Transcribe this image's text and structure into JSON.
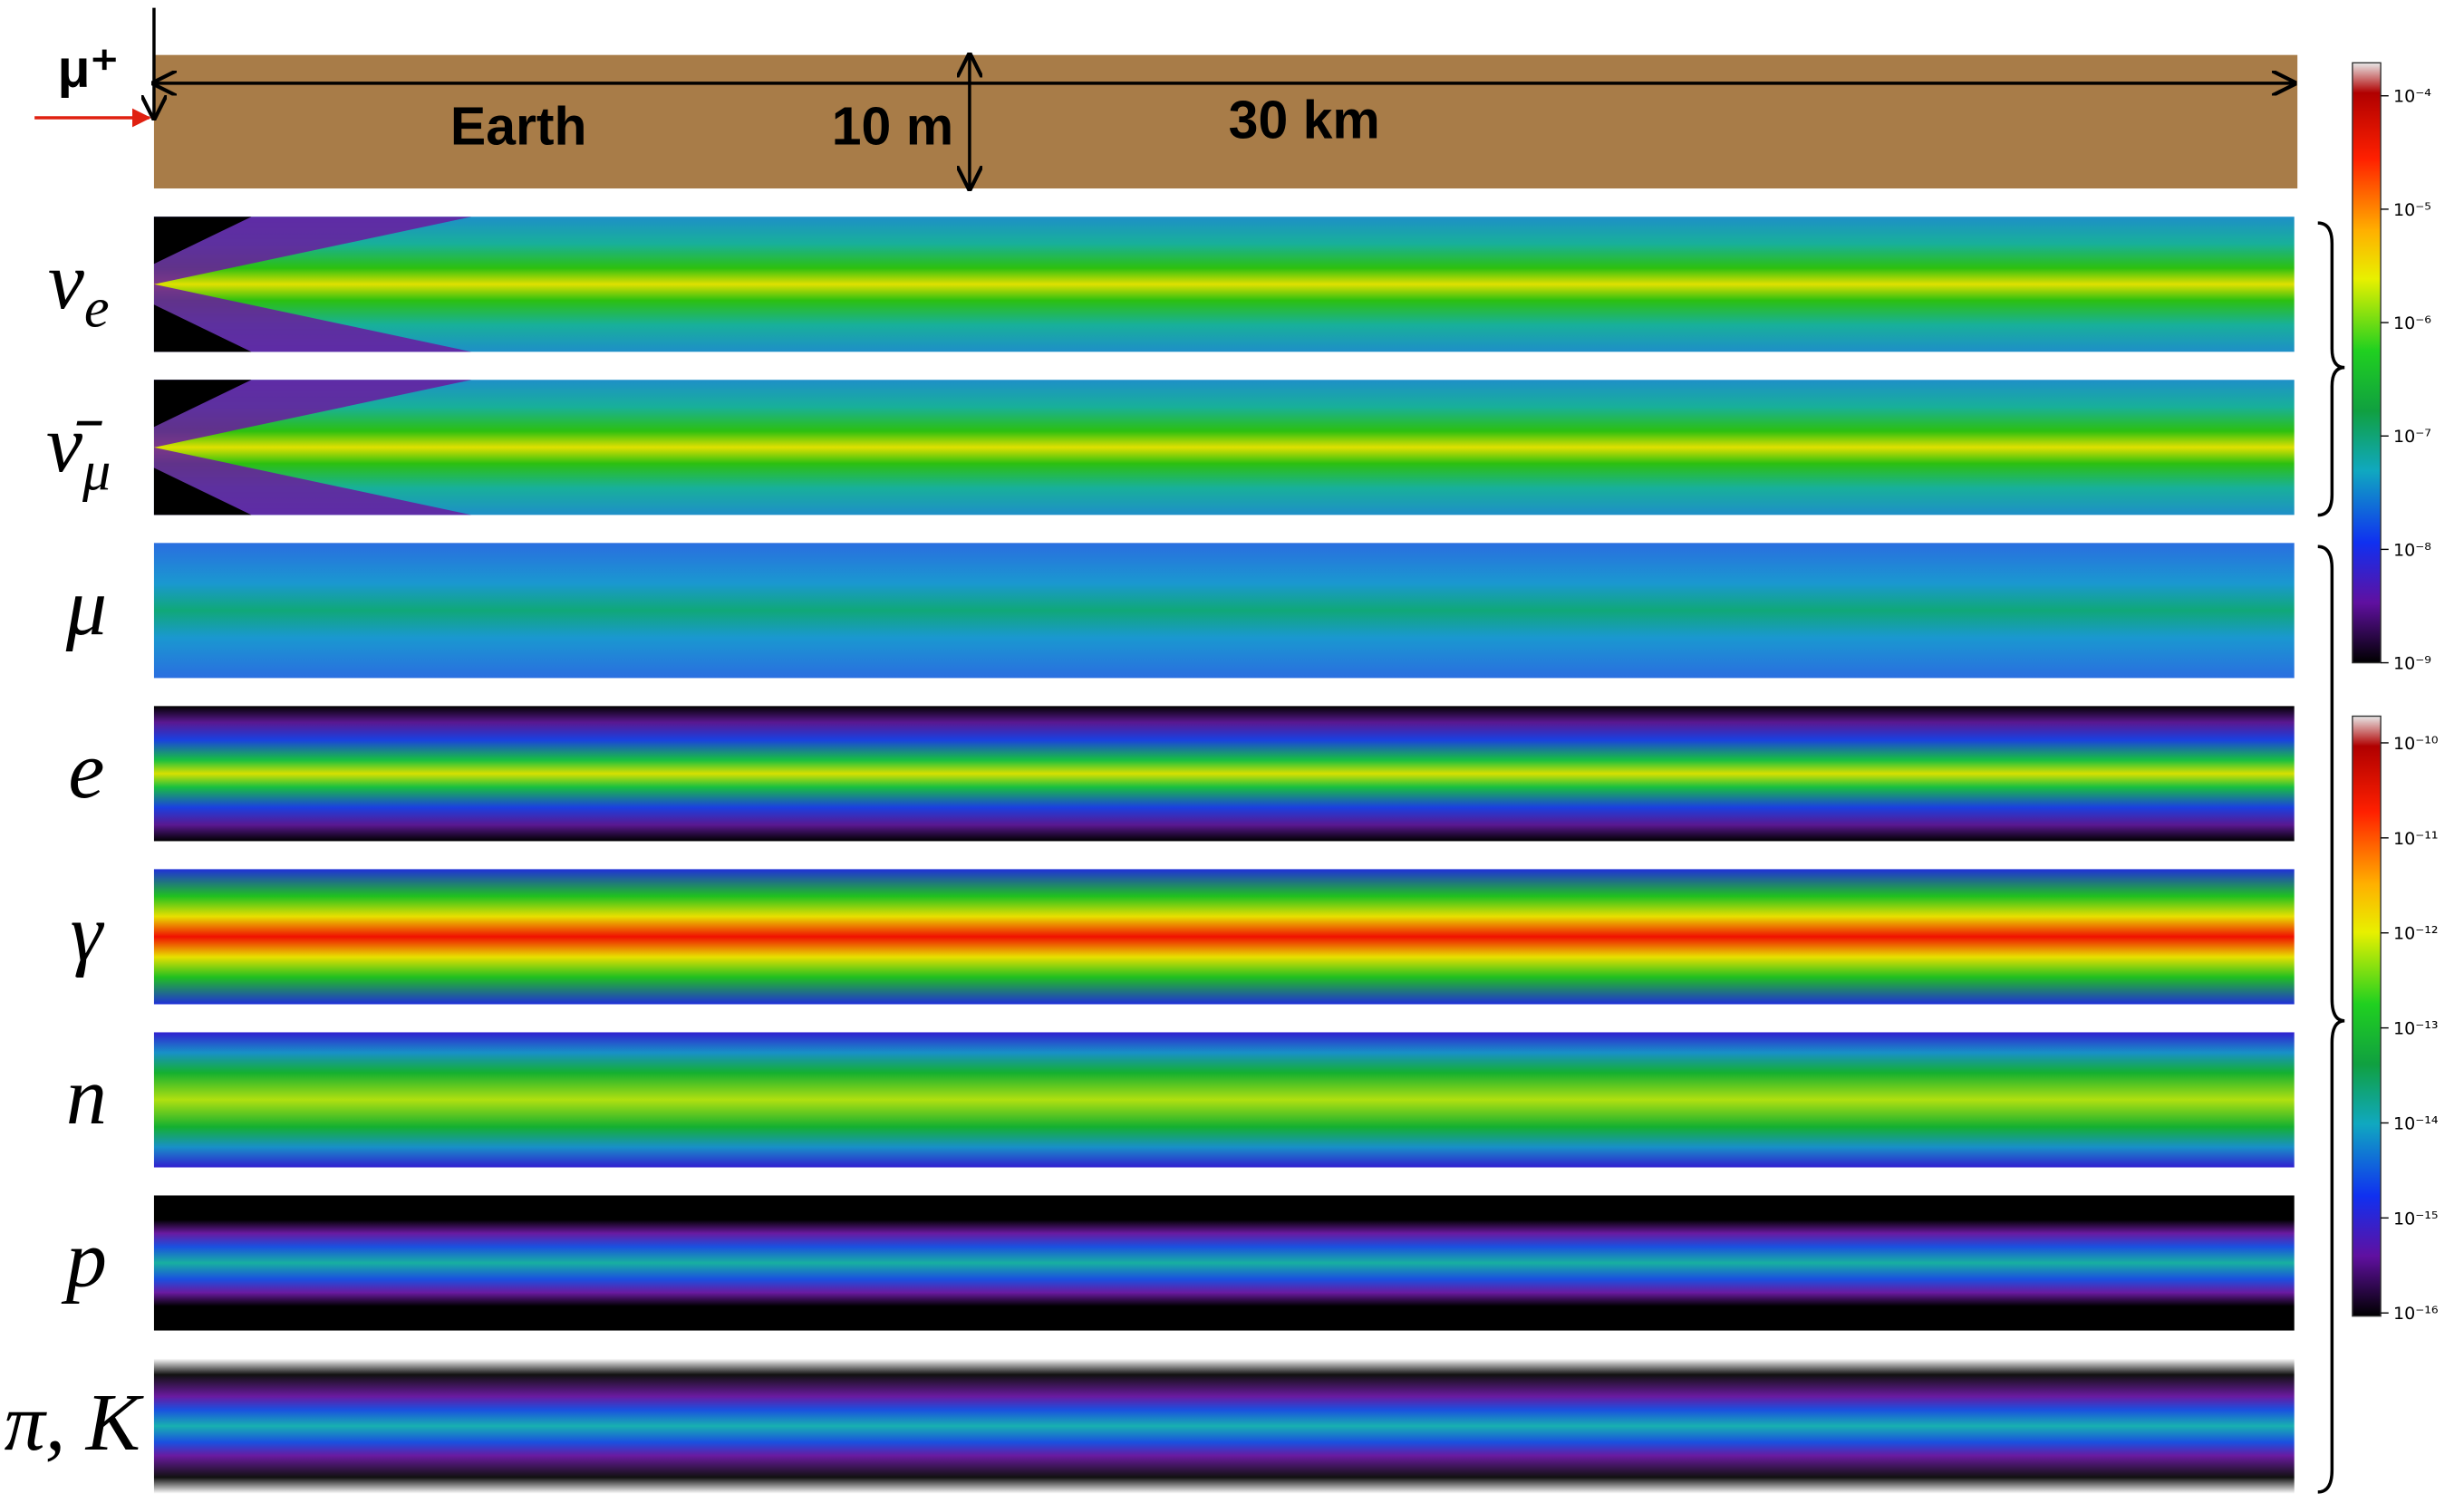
{
  "header": {
    "particle": "μ⁺",
    "medium": "Earth",
    "thickness": "10 m",
    "length": "30 km"
  },
  "panels": [
    {
      "symbol": "ν",
      "sub": "e"
    },
    {
      "symbol": "ν̄",
      "sub": "μ"
    },
    {
      "symbol": "μ"
    },
    {
      "symbol": "e"
    },
    {
      "symbol": "γ"
    },
    {
      "symbol": "n"
    },
    {
      "symbol": "p"
    },
    {
      "symbol": "π, K"
    }
  ],
  "colorbars": [
    {
      "ticks": [
        "10⁻⁴",
        "10⁻⁵",
        "10⁻⁶",
        "10⁻⁷",
        "10⁻⁸",
        "10⁻⁹"
      ]
    },
    {
      "ticks": [
        "10⁻¹⁰",
        "10⁻¹¹",
        "10⁻¹²",
        "10⁻¹³",
        "10⁻¹⁴",
        "10⁻¹⁵",
        "10⁻¹⁶"
      ]
    }
  ]
}
